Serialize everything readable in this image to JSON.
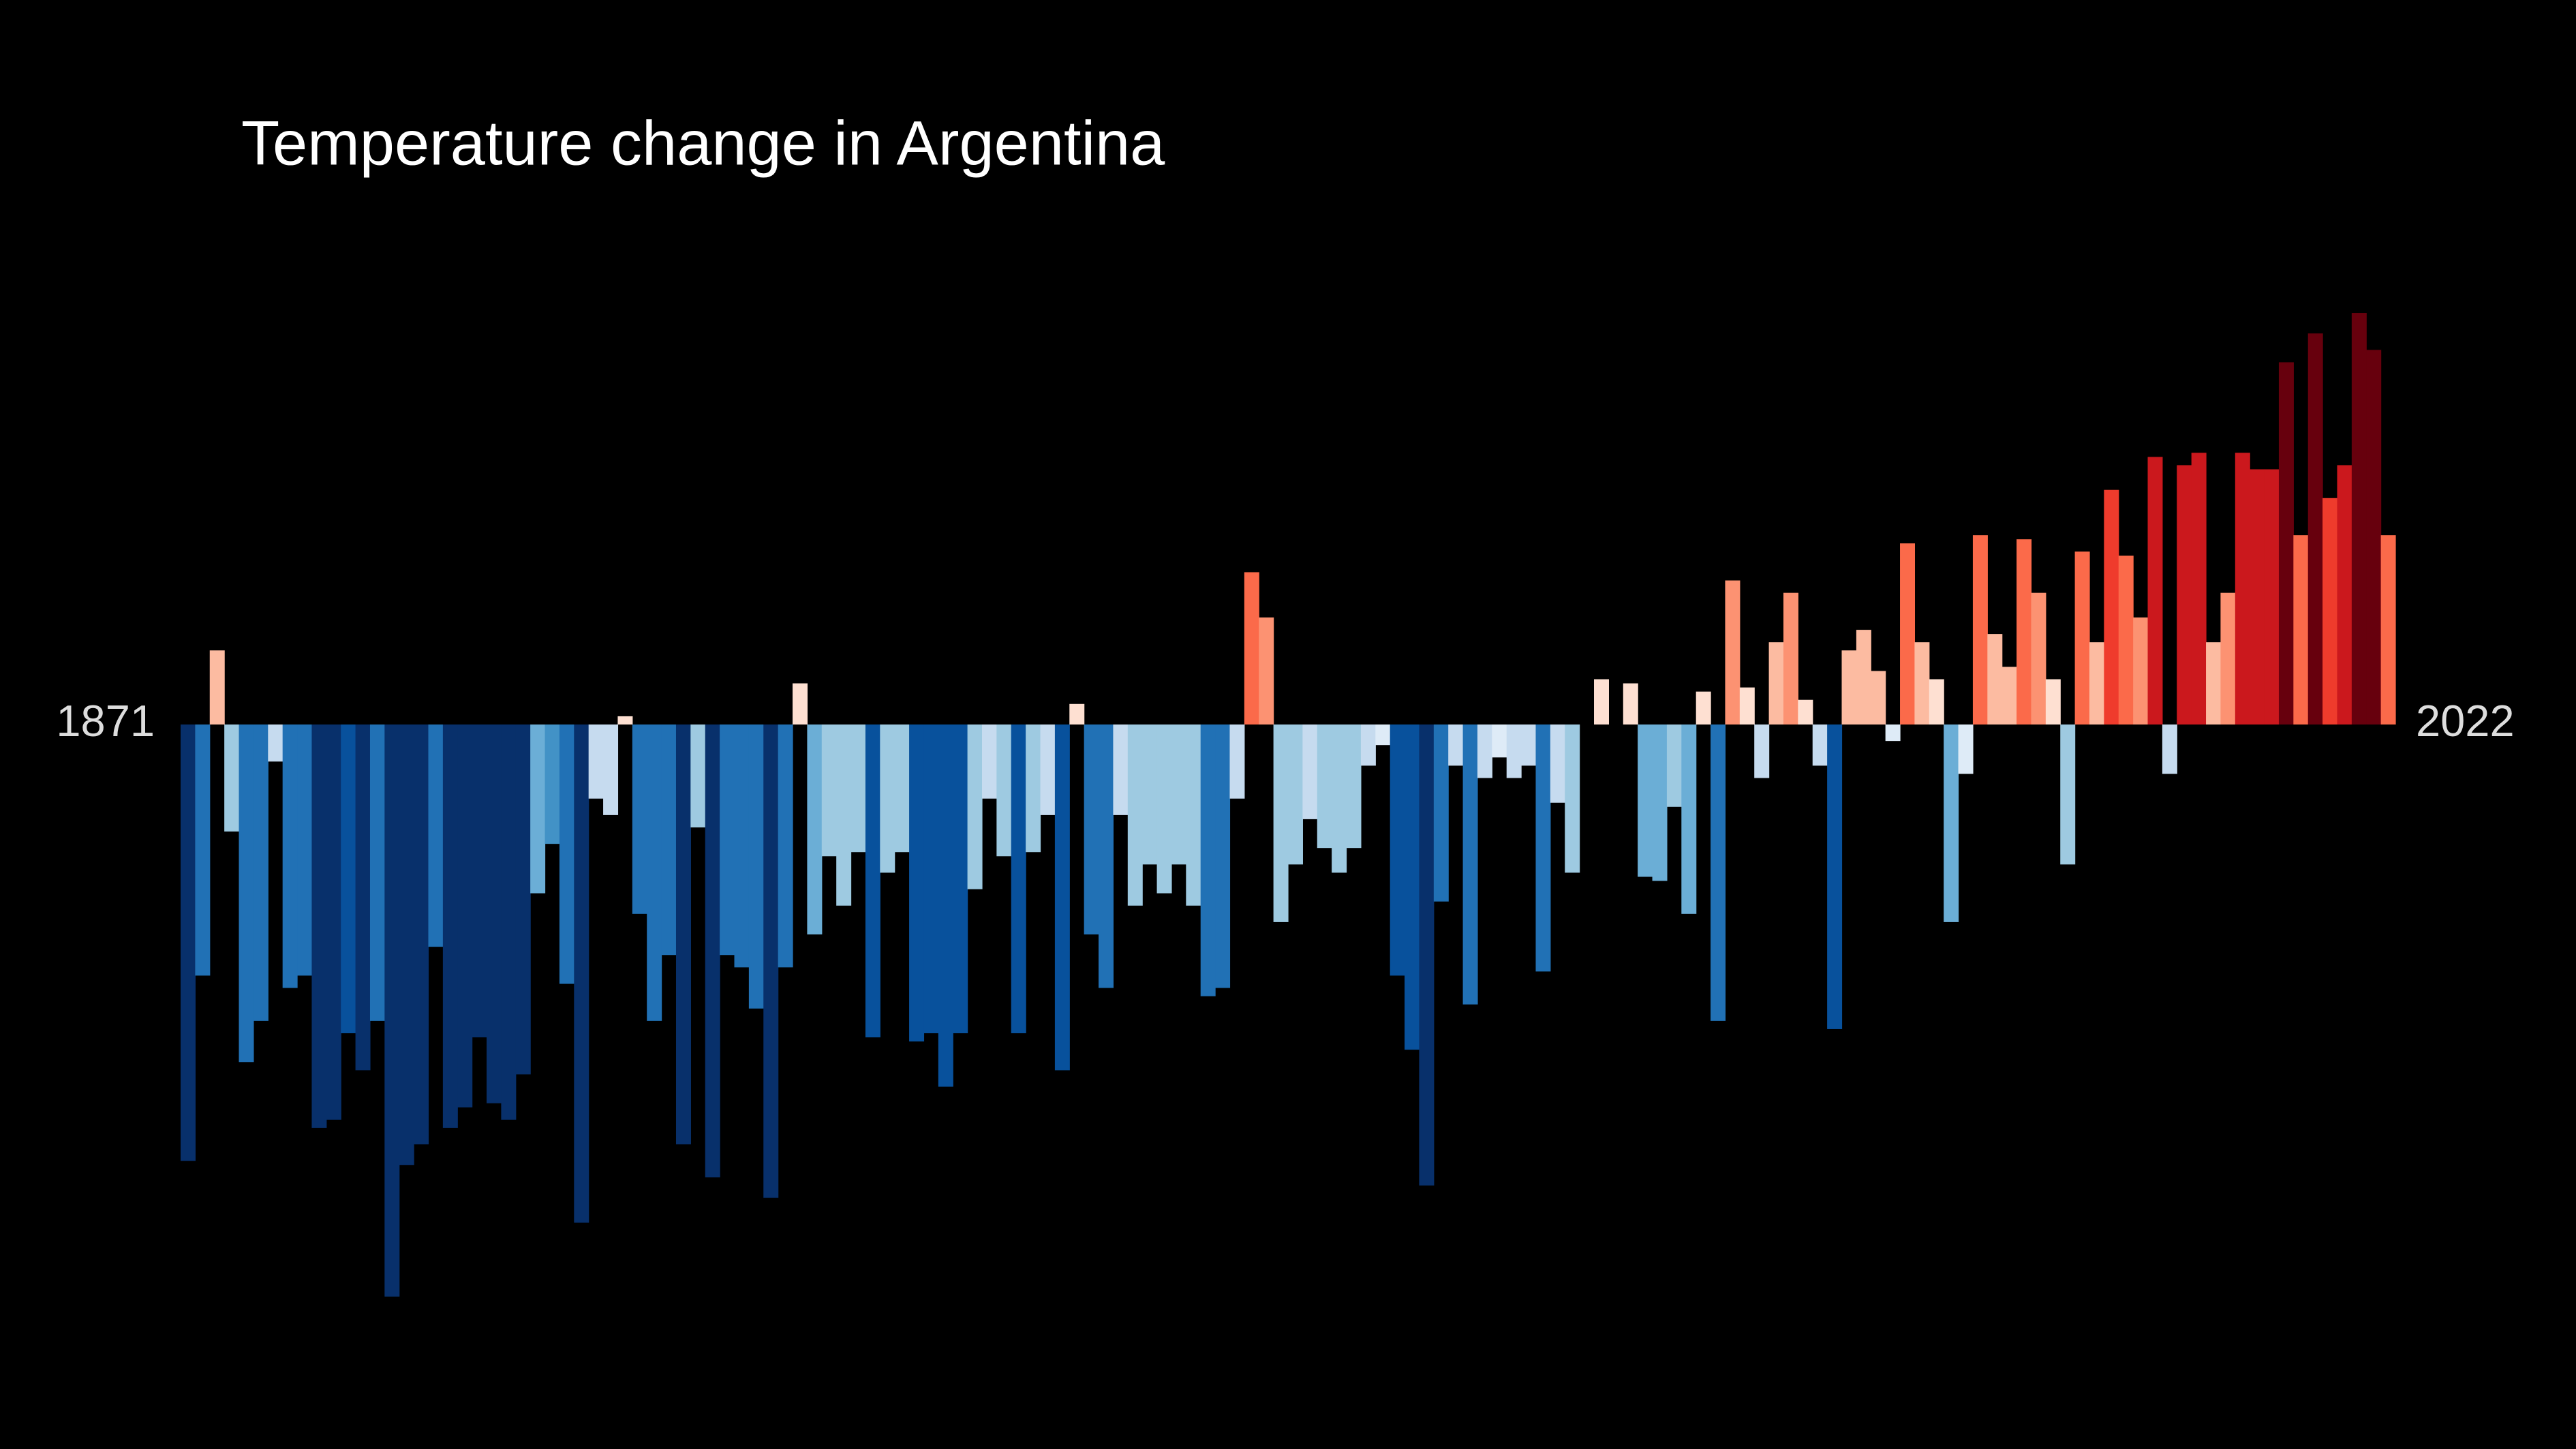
{
  "chart_data": {
    "type": "bar",
    "title": "Temperature change in Argentina",
    "categories": [
      "1871",
      null,
      null,
      null,
      null,
      null,
      null,
      null,
      null,
      null,
      null,
      null,
      null,
      null,
      null,
      null,
      null,
      null,
      null,
      null,
      null,
      null,
      null,
      null,
      null,
      null,
      null,
      null,
      null,
      null,
      null,
      null,
      null,
      null,
      null,
      null,
      null,
      null,
      null,
      null,
      null,
      null,
      null,
      null,
      null,
      null,
      null,
      null,
      null,
      null,
      null,
      null,
      null,
      null,
      null,
      null,
      null,
      null,
      null,
      null,
      null,
      null,
      null,
      null,
      null,
      null,
      null,
      null,
      null,
      null,
      null,
      null,
      null,
      null,
      null,
      null,
      null,
      null,
      null,
      null,
      null,
      null,
      null,
      null,
      null,
      null,
      null,
      null,
      null,
      null,
      null,
      null,
      null,
      null,
      null,
      null,
      null,
      null,
      null,
      null,
      null,
      null,
      null,
      null,
      null,
      null,
      null,
      null,
      null,
      null,
      null,
      null,
      null,
      null,
      null,
      null,
      null,
      null,
      null,
      null,
      null,
      null,
      null,
      null,
      null,
      null,
      null,
      null,
      null,
      null,
      null,
      null,
      null,
      null,
      null,
      null,
      null,
      null,
      null,
      null,
      null,
      null,
      null,
      null,
      null,
      null,
      null,
      null,
      null,
      null,
      null,
      "2022"
    ],
    "values": [
      -1.06,
      -0.61,
      0.18,
      -0.26,
      -0.82,
      -0.72,
      -0.09,
      -0.64,
      -0.61,
      -0.98,
      -0.96,
      -0.75,
      -0.84,
      -0.72,
      -1.39,
      -1.07,
      -1.02,
      -0.54,
      -0.98,
      -0.93,
      -0.76,
      -0.92,
      -0.96,
      -0.85,
      -0.41,
      -0.29,
      -0.63,
      -1.21,
      -0.18,
      -0.22,
      0.02,
      -0.46,
      -0.72,
      -0.56,
      -1.02,
      -0.25,
      -1.1,
      -0.56,
      -0.59,
      -0.69,
      -1.15,
      -0.59,
      0.1,
      -0.51,
      -0.32,
      -0.44,
      -0.31,
      -0.76,
      -0.36,
      -0.31,
      -0.77,
      -0.75,
      -0.88,
      -0.75,
      -0.4,
      -0.18,
      -0.32,
      -0.75,
      -0.31,
      -0.22,
      -0.84,
      0.05,
      -0.51,
      -0.64,
      -0.22,
      -0.44,
      -0.34,
      -0.41,
      -0.34,
      -0.44,
      -0.66,
      -0.64,
      -0.18,
      0.37,
      0.26,
      -0.48,
      -0.34,
      -0.23,
      -0.3,
      -0.36,
      -0.3,
      -0.1,
      -0.05,
      -0.61,
      -0.79,
      -1.12,
      -0.43,
      -0.1,
      -0.68,
      -0.13,
      -0.08,
      -0.13,
      -0.1,
      -0.6,
      -0.19,
      -0.36,
      0,
      0.11,
      0,
      0.1,
      -0.37,
      -0.38,
      -0.2,
      -0.46,
      0.08,
      -0.72,
      0.35,
      0.09,
      -0.13,
      0.2,
      0.32,
      0.06,
      -0.1,
      -0.74,
      0.18,
      0.23,
      0.13,
      -0.04,
      0.44,
      0.2,
      0.11,
      -0.48,
      -0.12,
      0.46,
      0.22,
      0.14,
      0.45,
      0.32,
      0.11,
      -0.34,
      0.42,
      0.2,
      0.57,
      0.41,
      0.26,
      0.65,
      -0.12,
      0.63,
      0.66,
      0.2,
      0.32,
      0.66,
      0.62,
      0.62,
      0.88,
      0.46,
      0.95,
      0.55,
      0.63,
      1.0,
      0.91,
      0.46
    ],
    "colors": [
      "#08306b",
      "#2171b5",
      "#fcbba1",
      "#9ecae1",
      "#2171b5",
      "#2171b5",
      "#c6dbef",
      "#2171b5",
      "#2171b5",
      "#08306b",
      "#08306b",
      "#08519c",
      "#08306b",
      "#2171b5",
      "#08306b",
      "#08306b",
      "#08306b",
      "#2171b5",
      "#08306b",
      "#08306b",
      "#08306b",
      "#08306b",
      "#08306b",
      "#08306b",
      "#6baed6",
      "#4292c6",
      "#2171b5",
      "#08306b",
      "#c6dbef",
      "#c6dbef",
      "#fee0d2",
      "#2171b5",
      "#2171b5",
      "#2171b5",
      "#08306b",
      "#9ecae1",
      "#08306b",
      "#2171b5",
      "#2171b5",
      "#2171b5",
      "#08306b",
      "#2171b5",
      "#fee0d2",
      "#6baed6",
      "#9ecae1",
      "#9ecae1",
      "#9ecae1",
      "#08519c",
      "#9ecae1",
      "#9ecae1",
      "#08519c",
      "#08519c",
      "#08519c",
      "#08519c",
      "#9ecae1",
      "#c6dbef",
      "#9ecae1",
      "#08519c",
      "#9ecae1",
      "#c6dbef",
      "#08519c",
      "#fee0d2",
      "#2171b5",
      "#2171b5",
      "#c6dbef",
      "#9ecae1",
      "#9ecae1",
      "#9ecae1",
      "#9ecae1",
      "#9ecae1",
      "#2171b5",
      "#2171b5",
      "#c6dbef",
      "#fb6a4a",
      "#fc9272",
      "#9ecae1",
      "#9ecae1",
      "#c6dbef",
      "#9ecae1",
      "#9ecae1",
      "#9ecae1",
      "#c6dbef",
      "#deebf7",
      "#08519c",
      "#08519c",
      "#08306b",
      "#2171b5",
      "#c6dbef",
      "#2171b5",
      "#c6dbef",
      "#deebf7",
      "#c6dbef",
      "#c6dbef",
      "#2171b5",
      "#c6dbef",
      "#9ecae1",
      "#fee0d2",
      "#fee0d2",
      "#fee0d2",
      "#fee0d2",
      "#6baed6",
      "#6baed6",
      "#9ecae1",
      "#6baed6",
      "#fee0d2",
      "#2171b5",
      "#fc9272",
      "#fee0d2",
      "#c6dbef",
      "#fcbba1",
      "#fc9272",
      "#fee0d2",
      "#c6dbef",
      "#08519c",
      "#fcbba1",
      "#fcbba1",
      "#fcbba1",
      "#deebf7",
      "#fb6a4a",
      "#fcbba1",
      "#fee0d2",
      "#6baed6",
      "#deebf7",
      "#fb6a4a",
      "#fcbba1",
      "#fcbba1",
      "#fb6a4a",
      "#fc9272",
      "#fee0d2",
      "#9ecae1",
      "#fb6a4a",
      "#fcbba1",
      "#ef3b2c",
      "#fb6a4a",
      "#fc9272",
      "#cb181d",
      "#c6dbef",
      "#cb181d",
      "#cb181d",
      "#fcbba1",
      "#fc9272",
      "#cb181d",
      "#cb181d",
      "#cb181d",
      "#67000d",
      "#fb6a4a",
      "#67000d",
      "#ef3b2c",
      "#cb181d",
      "#67000d",
      "#67000d",
      "#fb6a4a"
    ],
    "ylim": [
      -1.76,
      1.76
    ]
  }
}
